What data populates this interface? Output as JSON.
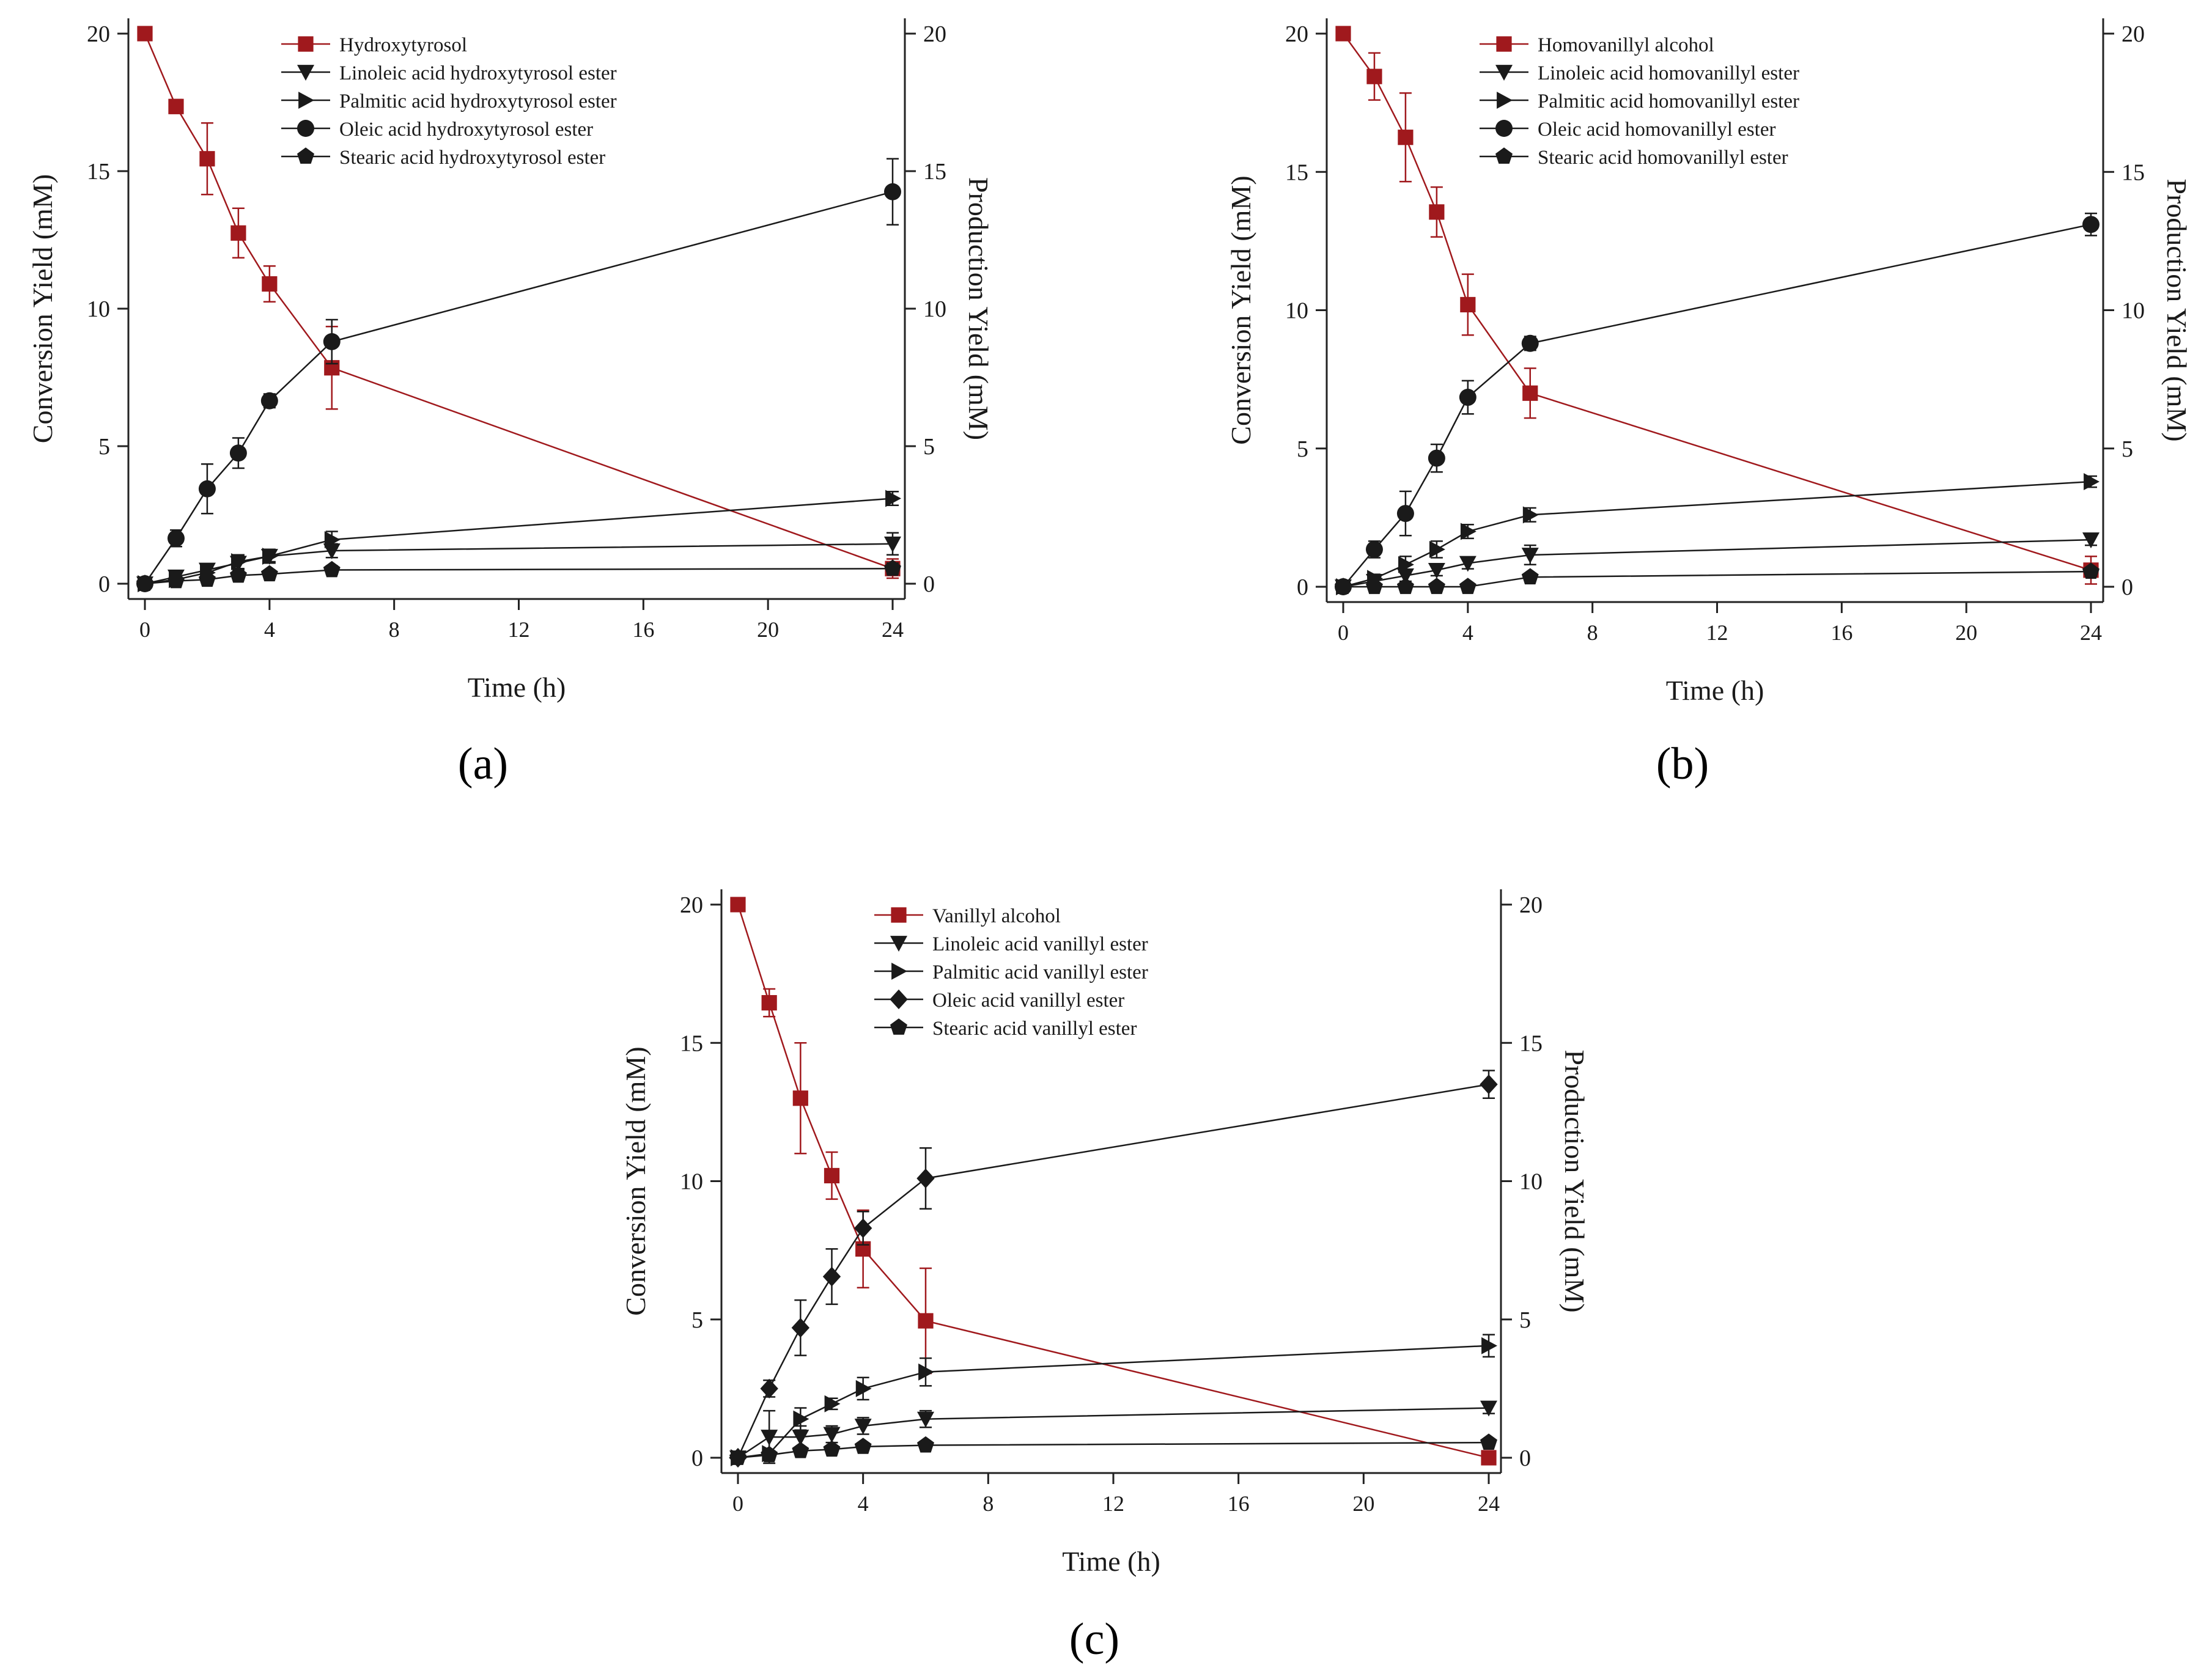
{
  "chart_data": [
    {
      "type": "line",
      "panel": "a",
      "xlabel": "Time (h)",
      "ylabel_left": "Conversion Yield (mM)",
      "ylabel_right": "Production Yield (mM)",
      "x_ticks": [
        "0",
        "4",
        "8",
        "12",
        "16",
        "20",
        "24"
      ],
      "y_ticks": [
        "0",
        "5",
        "10",
        "15",
        "20"
      ],
      "xlim": [
        0,
        24
      ],
      "ylim": [
        0,
        20
      ],
      "series": [
        {
          "name": "Hydroxytyrosol",
          "marker": "square",
          "color": "#a0191d",
          "x": [
            0,
            1,
            2,
            3,
            4,
            6,
            24
          ],
          "values": [
            20,
            17.35,
            15.45,
            12.75,
            10.9,
            7.85,
            0.55
          ],
          "errors": [
            0,
            0.25,
            1.3,
            0.9,
            0.65,
            1.5,
            0.35
          ]
        },
        {
          "name": "Linoleic acid hydroxytyrosol ester",
          "marker": "triangle-down",
          "color": "#1a1a1a",
          "x": [
            0,
            1,
            2,
            3,
            4,
            6,
            24
          ],
          "values": [
            0,
            0.25,
            0.5,
            0.75,
            1.0,
            1.2,
            1.45
          ],
          "errors": [
            0,
            0.15,
            0.2,
            0.25,
            0.2,
            0.25,
            0.4
          ]
        },
        {
          "name": "Palmitic acid hydroxytyrosol ester",
          "marker": "triangle-right",
          "color": "#1a1a1a",
          "x": [
            0,
            1,
            2,
            3,
            4,
            6,
            24
          ],
          "values": [
            0,
            0.15,
            0.4,
            0.8,
            1.0,
            1.6,
            3.1
          ],
          "errors": [
            0,
            0.1,
            0.2,
            0.25,
            0.25,
            0.3,
            0.25
          ]
        },
        {
          "name": "Oleic acid hydroxytyrosol ester",
          "marker": "circle",
          "color": "#1a1a1a",
          "x": [
            0,
            1,
            2,
            3,
            4,
            6,
            24
          ],
          "values": [
            0,
            1.65,
            3.45,
            4.75,
            6.65,
            8.8,
            14.25
          ],
          "errors": [
            0,
            0.3,
            0.9,
            0.55,
            0.25,
            0.8,
            1.2
          ]
        },
        {
          "name": "Stearic acid hydroxytyrosol ester",
          "marker": "pentagon",
          "color": "#1a1a1a",
          "x": [
            0,
            1,
            2,
            3,
            4,
            6,
            24
          ],
          "values": [
            0,
            0.1,
            0.15,
            0.3,
            0.35,
            0.5,
            0.55
          ],
          "errors": [
            0,
            0.05,
            0.1,
            0.1,
            0.1,
            0.15,
            0.2
          ]
        }
      ]
    },
    {
      "type": "line",
      "panel": "b",
      "xlabel": "Time (h)",
      "ylabel_left": "Conversion Yield (mM)",
      "ylabel_right": "Production Yield (mM)",
      "x_ticks": [
        "0",
        "4",
        "8",
        "12",
        "16",
        "20",
        "24"
      ],
      "y_ticks": [
        "0",
        "5",
        "10",
        "15",
        "20"
      ],
      "xlim": [
        0,
        24
      ],
      "ylim": [
        0,
        20
      ],
      "series": [
        {
          "name": "Homovanillyl alcohol",
          "marker": "square",
          "color": "#a0191d",
          "x": [
            0,
            1,
            2,
            3,
            4,
            6,
            24
          ],
          "values": [
            20,
            18.45,
            16.25,
            13.55,
            10.2,
            7.0,
            0.6
          ],
          "errors": [
            0,
            0.85,
            1.6,
            0.9,
            1.1,
            0.9,
            0.5
          ]
        },
        {
          "name": "Linoleic acid homovanillyl ester",
          "marker": "triangle-down",
          "color": "#1a1a1a",
          "x": [
            0,
            1,
            2,
            3,
            4,
            6,
            24
          ],
          "values": [
            0,
            0.2,
            0.4,
            0.6,
            0.85,
            1.15,
            1.7
          ],
          "errors": [
            0,
            0.1,
            0.2,
            0.2,
            0.2,
            0.35,
            0.2
          ]
        },
        {
          "name": "Palmitic acid homovanillyl ester",
          "marker": "triangle-right",
          "color": "#1a1a1a",
          "x": [
            0,
            1,
            2,
            3,
            4,
            6,
            24
          ],
          "values": [
            0,
            0.3,
            0.8,
            1.35,
            2.0,
            2.6,
            3.8
          ],
          "errors": [
            0,
            0.15,
            0.3,
            0.3,
            0.25,
            0.25,
            0.2
          ]
        },
        {
          "name": "Oleic acid homovanillyl ester",
          "marker": "circle",
          "color": "#1a1a1a",
          "x": [
            0,
            1,
            2,
            3,
            4,
            6,
            24
          ],
          "values": [
            0,
            1.35,
            2.65,
            4.65,
            6.85,
            8.8,
            13.1
          ],
          "errors": [
            0,
            0.3,
            0.8,
            0.5,
            0.6,
            0.25,
            0.4
          ]
        },
        {
          "name": "Stearic acid homovanillyl ester",
          "marker": "pentagon",
          "color": "#1a1a1a",
          "x": [
            0,
            1,
            2,
            3,
            4,
            6,
            24
          ],
          "values": [
            0,
            0,
            0,
            0,
            0,
            0.35,
            0.55
          ],
          "errors": [
            0,
            0,
            0,
            0,
            0,
            0.1,
            0.1
          ]
        }
      ]
    },
    {
      "type": "line",
      "panel": "c",
      "xlabel": "Time (h)",
      "ylabel_left": "Conversion Yield (mM)",
      "ylabel_right": "Production Yield (mM)",
      "x_ticks": [
        "0",
        "4",
        "8",
        "12",
        "16",
        "20",
        "24"
      ],
      "y_ticks": [
        "0",
        "5",
        "10",
        "15",
        "20"
      ],
      "xlim": [
        0,
        24
      ],
      "ylim": [
        0,
        20
      ],
      "series": [
        {
          "name": "Vanillyl alcohol",
          "marker": "square",
          "color": "#a0191d",
          "x": [
            0,
            1,
            2,
            3,
            4,
            6,
            24
          ],
          "values": [
            20,
            16.45,
            13.0,
            10.2,
            7.55,
            4.95,
            0
          ],
          "errors": [
            0,
            0.5,
            2.0,
            0.85,
            1.4,
            1.9,
            0
          ]
        },
        {
          "name": "Linoleic acid vanillyl ester",
          "marker": "triangle-down",
          "color": "#1a1a1a",
          "x": [
            0,
            1,
            2,
            3,
            4,
            6,
            24
          ],
          "values": [
            0,
            0.75,
            0.75,
            0.85,
            1.15,
            1.4,
            1.8
          ],
          "errors": [
            0,
            0.95,
            0.4,
            0.3,
            0.3,
            0.3,
            0.2
          ]
        },
        {
          "name": "Palmitic acid vanillyl ester",
          "marker": "triangle-right",
          "color": "#1a1a1a",
          "x": [
            0,
            1,
            2,
            3,
            4,
            6,
            24
          ],
          "values": [
            0,
            0.15,
            1.4,
            1.95,
            2.5,
            3.1,
            4.05
          ],
          "errors": [
            0,
            0.1,
            0.4,
            0.2,
            0.4,
            0.5,
            0.4
          ]
        },
        {
          "name": "Oleic acid vanillyl ester",
          "marker": "diamond",
          "color": "#1a1a1a",
          "x": [
            0,
            1,
            2,
            3,
            4,
            6,
            24
          ],
          "values": [
            0,
            2.5,
            4.7,
            6.55,
            8.3,
            10.1,
            13.5
          ],
          "errors": [
            0,
            0.3,
            1.0,
            1.0,
            0.6,
            1.1,
            0.5
          ]
        },
        {
          "name": "Stearic acid vanillyl ester",
          "marker": "pentagon",
          "color": "#1a1a1a",
          "x": [
            0,
            1,
            2,
            3,
            4,
            6,
            24
          ],
          "values": [
            0,
            0.1,
            0.25,
            0.3,
            0.4,
            0.45,
            0.55
          ],
          "errors": [
            0,
            0.05,
            0.1,
            0.1,
            0.1,
            0.1,
            0.1
          ]
        }
      ]
    }
  ],
  "panel_labels": [
    "(a)",
    "(b)",
    "(c)"
  ]
}
